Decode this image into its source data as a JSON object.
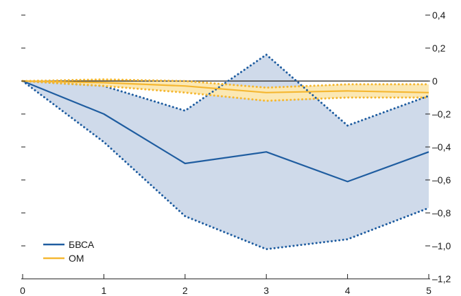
{
  "chart_data": {
    "type": "line",
    "title": "",
    "xlabel": "",
    "ylabel": "",
    "x": [
      0,
      1,
      2,
      3,
      4,
      5
    ],
    "x_tick_labels": [
      "0",
      "1",
      "2",
      "3",
      "4",
      "5"
    ],
    "ylim": [
      -1.2,
      0.4
    ],
    "y_ticks": [
      0.4,
      0.2,
      0,
      -0.2,
      -0.4,
      -0.6,
      -0.8,
      -1.0,
      -1.2
    ],
    "y_tick_labels": [
      "0,4",
      "0,2",
      "0",
      "–0,2",
      "–0,4",
      "–0,6",
      "–0,8",
      "–1,0",
      "–1,2"
    ],
    "legend_position": "bottom-left",
    "grid": false,
    "series": [
      {
        "name": "БВСА",
        "color": "#1f5da0",
        "band_color": "#cfdaea",
        "values": [
          0,
          -0.2,
          -0.5,
          -0.43,
          -0.61,
          -0.43
        ],
        "upper": [
          0,
          -0.03,
          -0.18,
          0.16,
          -0.27,
          -0.09
        ],
        "lower": [
          0,
          -0.37,
          -0.82,
          -1.02,
          -0.96,
          -0.77
        ]
      },
      {
        "name": "ОМ",
        "color": "#f5b731",
        "band_color": "#fbe8b4",
        "values": [
          0,
          -0.01,
          -0.03,
          -0.07,
          -0.06,
          -0.07
        ],
        "upper": [
          0,
          0.01,
          0.0,
          -0.04,
          -0.02,
          -0.02
        ],
        "lower": [
          0,
          -0.03,
          -0.07,
          -0.12,
          -0.1,
          -0.1
        ]
      }
    ]
  }
}
